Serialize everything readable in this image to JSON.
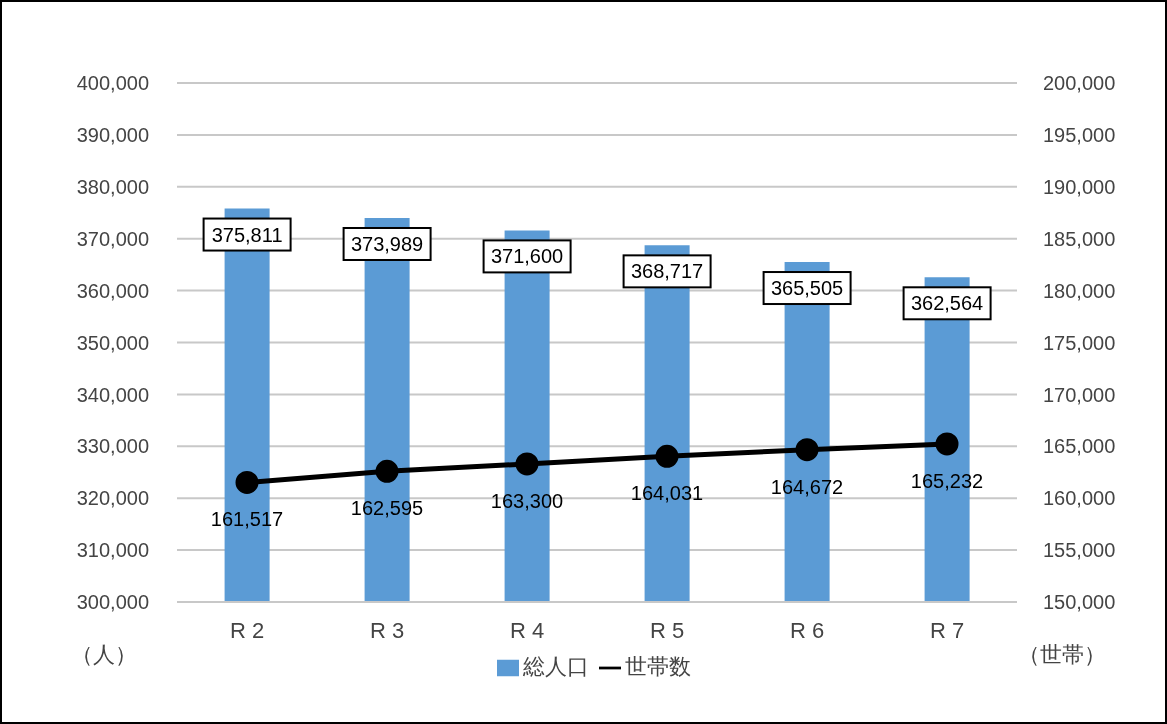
{
  "chart_data": {
    "type": "bar",
    "categories": [
      "R 2",
      "R 3",
      "R 4",
      "R 5",
      "R 6",
      "R 7"
    ],
    "series": [
      {
        "name": "総人口",
        "color": "#5b9bd5",
        "values": [
          375811,
          373989,
          371600,
          368717,
          365505,
          362564
        ],
        "value_labels": [
          "375,811",
          "373,989",
          "371,600",
          "368,717",
          "365,505",
          "362,564"
        ]
      },
      {
        "name": "世帯数",
        "type": "line",
        "axis": "y2",
        "color": "#000000",
        "values": [
          161517,
          162595,
          163300,
          164031,
          164672,
          165232
        ],
        "value_labels": [
          "161,517",
          "162,595",
          "163,300",
          "164,031",
          "164,672",
          "165,232"
        ]
      }
    ],
    "ylabel": "（人）",
    "y2label": "（世帯）",
    "ylim": [
      300000,
      400000
    ],
    "yticks": [
      {
        "value": 300000,
        "label": "300,000"
      },
      {
        "value": 310000,
        "label": "310,000"
      },
      {
        "value": 320000,
        "label": "320,000"
      },
      {
        "value": 330000,
        "label": "330,000"
      },
      {
        "value": 340000,
        "label": "340,000"
      },
      {
        "value": 350000,
        "label": "350,000"
      },
      {
        "value": 360000,
        "label": "360,000"
      },
      {
        "value": 370000,
        "label": "370,000"
      },
      {
        "value": 380000,
        "label": "380,000"
      },
      {
        "value": 390000,
        "label": "390,000"
      },
      {
        "value": 400000,
        "label": "400,000"
      }
    ],
    "y2lim": [
      150000,
      200000
    ],
    "y2ticks": [
      {
        "value": 150000,
        "label": "150,000"
      },
      {
        "value": 155000,
        "label": "155,000"
      },
      {
        "value": 160000,
        "label": "160,000"
      },
      {
        "value": 165000,
        "label": "165,000"
      },
      {
        "value": 170000,
        "label": "170,000"
      },
      {
        "value": 175000,
        "label": "175,000"
      },
      {
        "value": 180000,
        "label": "180,000"
      },
      {
        "value": 185000,
        "label": "185,000"
      },
      {
        "value": 190000,
        "label": "190,000"
      },
      {
        "value": 195000,
        "label": "195,000"
      },
      {
        "value": 200000,
        "label": "200,000"
      }
    ],
    "grid": "y",
    "legend": "bottom",
    "marker": "circle",
    "line_style": "solid"
  }
}
